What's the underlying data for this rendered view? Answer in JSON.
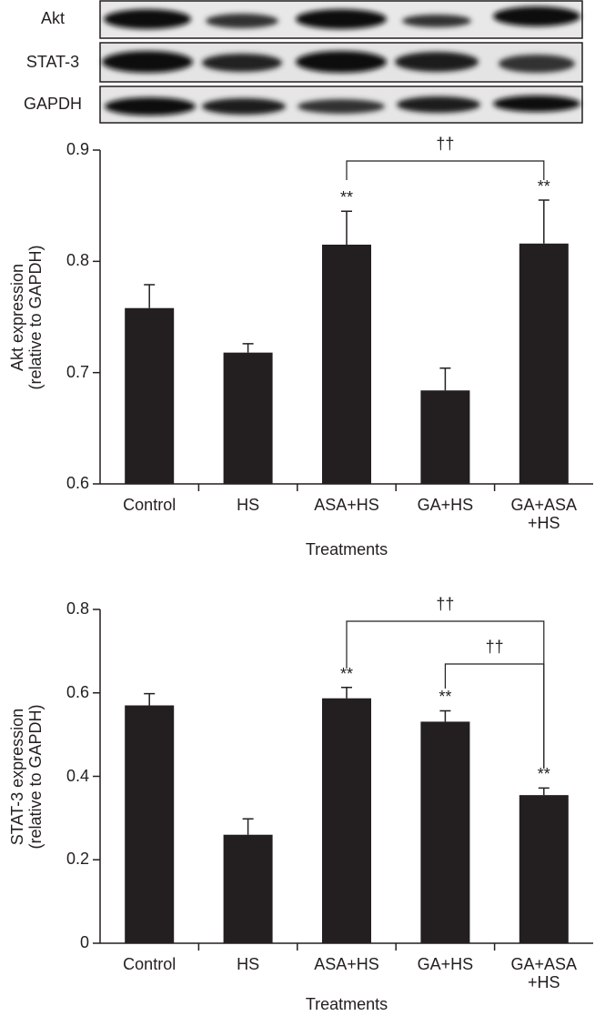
{
  "blot": {
    "rows": [
      "Akt",
      "STAT-3",
      "GAPDH"
    ]
  },
  "chart_data": [
    {
      "type": "bar",
      "ylabel": "Akt expression\n(relative to GAPDH)",
      "xlabel": "Treatments",
      "categories": [
        "Control",
        "HS",
        "ASA+HS",
        "GA+HS",
        "GA+ASA\n+HS"
      ],
      "values": [
        0.758,
        0.718,
        0.815,
        0.684,
        0.816
      ],
      "errors": [
        0.021,
        0.008,
        0.03,
        0.02,
        0.039
      ],
      "annotations": [
        null,
        null,
        "**",
        null,
        "**"
      ],
      "brackets": [
        {
          "between": [
            "ASA+HS",
            "GA+ASA\n+HS"
          ],
          "label": "††"
        }
      ],
      "color": "#231f20",
      "ylim": [
        0.6,
        0.9
      ],
      "yticks": [
        0.6,
        0.7,
        0.8,
        0.9
      ]
    },
    {
      "type": "bar",
      "ylabel": "STAT-3 expression\n(relative to GAPDH)",
      "xlabel": "Treatments",
      "categories": [
        "Control",
        "HS",
        "ASA+HS",
        "GA+HS",
        "GA+ASA\n+HS"
      ],
      "values": [
        0.57,
        0.26,
        0.587,
        0.531,
        0.355
      ],
      "errors": [
        0.028,
        0.038,
        0.026,
        0.026,
        0.017
      ],
      "annotations": [
        null,
        null,
        "**",
        "**",
        "**"
      ],
      "brackets": [
        {
          "between": [
            "ASA+HS",
            "GA+ASA\n+HS"
          ],
          "label": "††"
        },
        {
          "between": [
            "GA+HS",
            "GA+ASA\n+HS"
          ],
          "label": "††"
        }
      ],
      "color": "#231f20",
      "ylim": [
        0,
        0.8
      ],
      "yticks": [
        0,
        0.2,
        0.4,
        0.6,
        0.8
      ]
    }
  ]
}
